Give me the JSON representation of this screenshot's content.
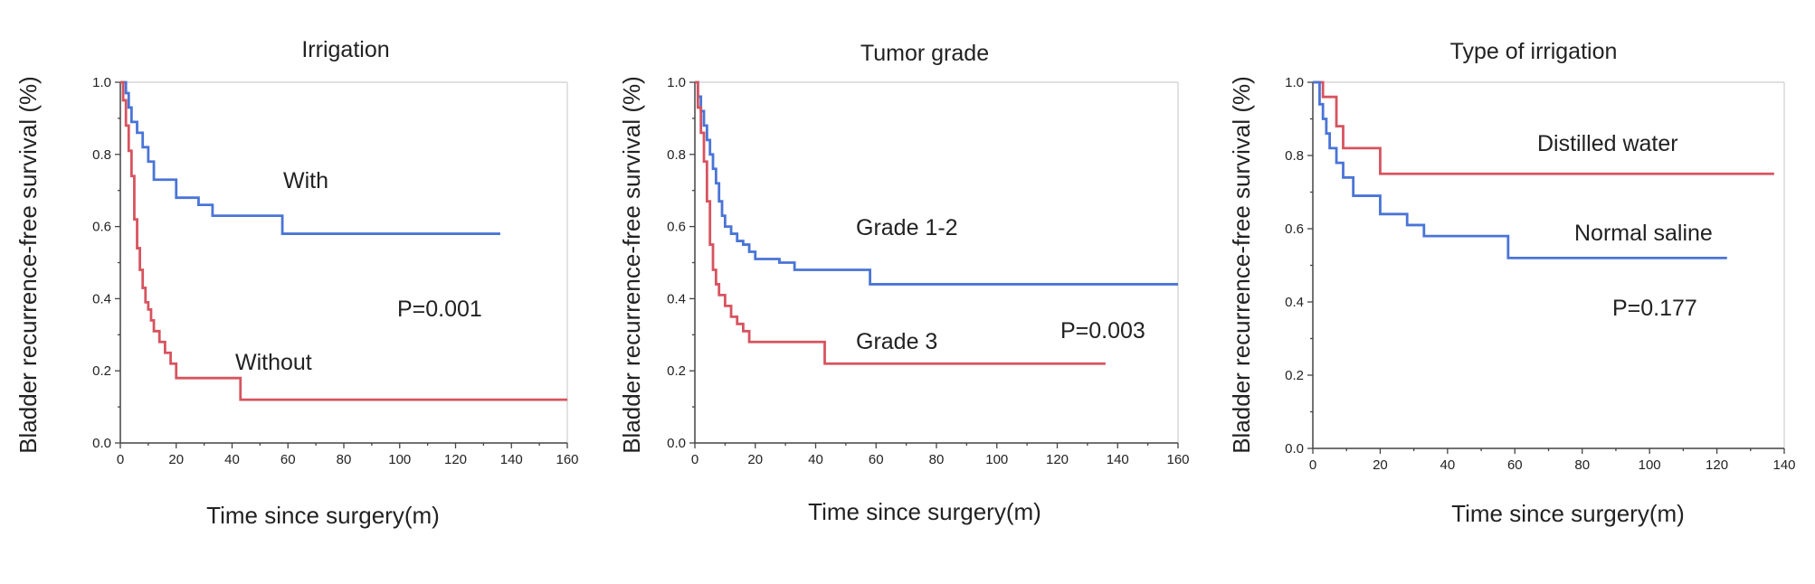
{
  "chart_data": [
    {
      "type": "line",
      "title": "Irrigation",
      "xlabel": "Time since surgery(m)",
      "ylabel": "Bladder recurrence-free survival (%)",
      "xlim": [
        0,
        160
      ],
      "ylim": [
        0,
        1
      ],
      "xticks": [
        0,
        20,
        40,
        60,
        80,
        100,
        120,
        140,
        160
      ],
      "yticks": [
        0.0,
        0.2,
        0.4,
        0.6,
        0.8,
        1.0
      ],
      "xtick_labels": [
        "0",
        "20",
        "40",
        "60",
        "80",
        "100",
        "120",
        "140",
        "160"
      ],
      "ytick_labels": [
        "0.0",
        "0.2",
        "0.4",
        "0.6",
        "0.8",
        "1.0"
      ],
      "grid": false,
      "step": true,
      "series": [
        {
          "name": "With",
          "color": "#4a74d6",
          "x": [
            0,
            2,
            3,
            4,
            6,
            8,
            10,
            12,
            20,
            28,
            33,
            58,
            136
          ],
          "y": [
            1.0,
            0.97,
            0.93,
            0.89,
            0.86,
            0.82,
            0.78,
            0.73,
            0.68,
            0.66,
            0.63,
            0.58,
            0.58
          ]
        },
        {
          "name": "Without",
          "color": "#d6545f",
          "x": [
            0,
            1,
            2,
            3,
            4,
            5,
            6,
            7,
            8,
            9,
            10,
            11,
            12,
            14,
            16,
            18,
            20,
            43,
            160
          ],
          "y": [
            1.0,
            0.95,
            0.88,
            0.81,
            0.74,
            0.62,
            0.54,
            0.48,
            0.43,
            0.39,
            0.37,
            0.34,
            0.31,
            0.28,
            0.25,
            0.22,
            0.18,
            0.12,
            0.12
          ]
        }
      ],
      "annotations": [
        "With",
        "Without",
        "P=0.001"
      ]
    },
    {
      "type": "line",
      "title": "Tumor grade",
      "xlabel": "Time since surgery(m)",
      "ylabel": "Bladder recurrence-free survival (%)",
      "xlim": [
        0,
        160
      ],
      "ylim": [
        0,
        1
      ],
      "xticks": [
        0,
        20,
        40,
        60,
        80,
        100,
        120,
        140,
        160
      ],
      "yticks": [
        0.0,
        0.2,
        0.4,
        0.6,
        0.8,
        1.0
      ],
      "xtick_labels": [
        "0",
        "20",
        "40",
        "60",
        "80",
        "100",
        "120",
        "140",
        "160"
      ],
      "ytick_labels": [
        "0.0",
        "0.2",
        "0.4",
        "0.6",
        "0.8",
        "1.0"
      ],
      "grid": false,
      "step": true,
      "series": [
        {
          "name": "Grade 1-2",
          "color": "#4a74d6",
          "x": [
            0,
            1,
            2,
            3,
            4,
            5,
            6,
            7,
            8,
            9,
            10,
            12,
            14,
            16,
            18,
            20,
            28,
            33,
            58,
            160
          ],
          "y": [
            1.0,
            0.96,
            0.92,
            0.88,
            0.84,
            0.8,
            0.76,
            0.72,
            0.67,
            0.63,
            0.6,
            0.58,
            0.56,
            0.55,
            0.53,
            0.51,
            0.5,
            0.48,
            0.44,
            0.44
          ]
        },
        {
          "name": "Grade 3",
          "color": "#d6545f",
          "x": [
            0,
            1,
            2,
            3,
            4,
            5,
            6,
            7,
            8,
            10,
            12,
            14,
            16,
            18,
            28,
            43,
            136
          ],
          "y": [
            1.0,
            0.93,
            0.86,
            0.78,
            0.67,
            0.55,
            0.48,
            0.44,
            0.41,
            0.38,
            0.35,
            0.33,
            0.31,
            0.28,
            0.28,
            0.22,
            0.22
          ]
        }
      ],
      "annotations": [
        "Grade 1-2",
        "Grade 3",
        "P=0.003"
      ]
    },
    {
      "type": "line",
      "title": "Type of irrigation",
      "xlabel": "Time since surgery(m)",
      "ylabel": "Bladder recurrence-free survival (%)",
      "xlim": [
        0,
        140
      ],
      "ylim": [
        0,
        1
      ],
      "xticks": [
        0,
        20,
        40,
        60,
        80,
        100,
        120,
        140
      ],
      "yticks": [
        0.0,
        0.2,
        0.4,
        0.6,
        0.8,
        1.0
      ],
      "xtick_labels": [
        "0",
        "20",
        "40",
        "60",
        "80",
        "100",
        "120",
        "140"
      ],
      "ytick_labels": [
        "0.0",
        "0.2",
        "0.4",
        "0.6",
        "0.8",
        "1.0"
      ],
      "grid": false,
      "step": true,
      "series": [
        {
          "name": "Distilled water",
          "color": "#d6545f",
          "x": [
            0,
            3,
            7,
            9,
            20,
            137
          ],
          "y": [
            1.0,
            0.96,
            0.88,
            0.82,
            0.75,
            0.75
          ]
        },
        {
          "name": "Normal saline",
          "color": "#4a74d6",
          "x": [
            0,
            2,
            3,
            4,
            5,
            7,
            9,
            12,
            20,
            28,
            33,
            58,
            123
          ],
          "y": [
            1.0,
            0.94,
            0.9,
            0.86,
            0.82,
            0.78,
            0.74,
            0.69,
            0.64,
            0.61,
            0.58,
            0.52,
            0.52
          ]
        }
      ],
      "annotations": [
        "Distilled water",
        "Normal saline",
        "P=0.177"
      ]
    }
  ]
}
